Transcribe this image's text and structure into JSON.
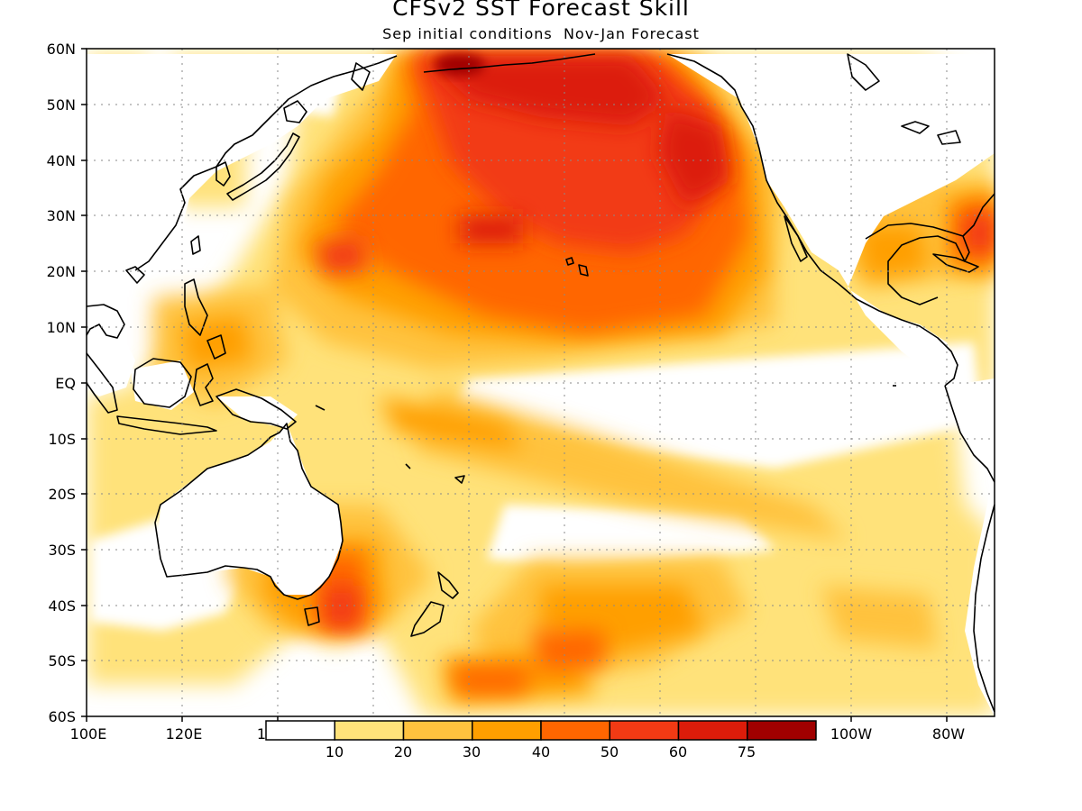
{
  "header": {
    "title": "CFSv2 SST Forecast Skill",
    "subtitle": "Sep initial conditions  Nov-Jan Forecast"
  },
  "map": {
    "region": "Pacific Ocean",
    "lat_labels": [
      "60N",
      "50N",
      "40N",
      "30N",
      "20N",
      "10N",
      "EQ",
      "10S",
      "20S",
      "30S",
      "40S",
      "50S",
      "60S"
    ],
    "lon_labels": [
      "100E",
      "120E",
      "100W",
      "80W"
    ],
    "lon_label_partial": "1"
  },
  "legend": {
    "thresholds": [
      "10",
      "20",
      "30",
      "40",
      "50",
      "60",
      "75"
    ],
    "colors": [
      "#ffffff",
      "#ffe27a",
      "#ffc23e",
      "#ff9f00",
      "#ff6600",
      "#f23a14",
      "#dc1c0a",
      "#a00000"
    ]
  },
  "colors": {
    "coastline": "#000000",
    "grid": "#8a8a8a",
    "background": "#ffffff"
  }
}
